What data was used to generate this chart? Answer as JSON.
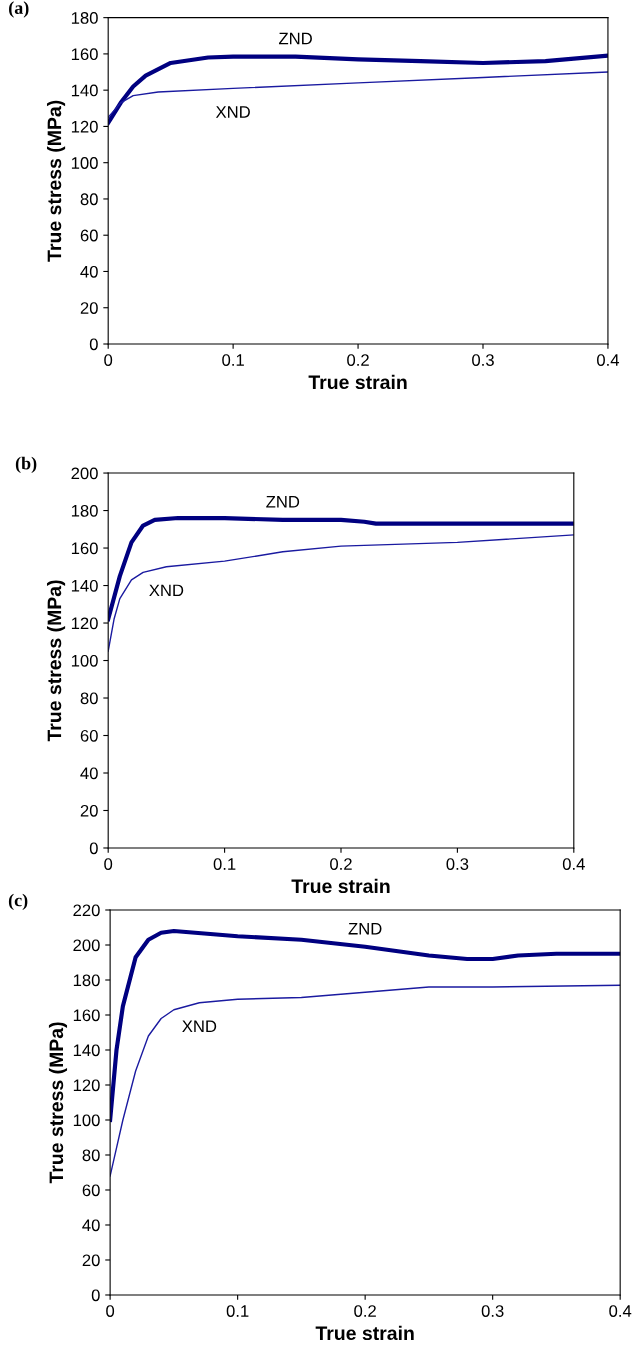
{
  "chart_data": [
    {
      "type": "line",
      "title": "(a)",
      "xlabel": "True strain",
      "ylabel": "True stress (MPa)",
      "xlim": [
        0,
        0.4
      ],
      "ylim": [
        0,
        180
      ],
      "xticks": [
        0,
        0.1,
        0.2,
        0.3,
        0.4
      ],
      "yticks": [
        0,
        20,
        40,
        60,
        80,
        100,
        120,
        140,
        160,
        180
      ],
      "grid": false,
      "legend": false,
      "marker": "none",
      "line_style": "solid",
      "series": [
        {
          "name": "ZND",
          "color": "#000080",
          "x": [
            0,
            0.01,
            0.02,
            0.03,
            0.05,
            0.08,
            0.1,
            0.15,
            0.2,
            0.25,
            0.3,
            0.35,
            0.4
          ],
          "values": [
            122,
            133,
            142,
            148,
            155,
            158,
            158.5,
            158.5,
            157,
            156,
            155,
            156,
            159
          ]
        },
        {
          "name": "XND",
          "color": "#1a1aa0",
          "x": [
            0,
            0.01,
            0.02,
            0.04,
            0.1,
            0.2,
            0.3,
            0.4
          ],
          "values": [
            125,
            133,
            137,
            139,
            141,
            144,
            147,
            150
          ]
        }
      ]
    },
    {
      "type": "line",
      "title": "(b)",
      "xlabel": "True strain",
      "ylabel": "True stress (MPa)",
      "xlim": [
        0,
        0.4
      ],
      "ylim": [
        0,
        200
      ],
      "xticks": [
        0,
        0.1,
        0.2,
        0.3,
        0.4
      ],
      "yticks": [
        0,
        20,
        40,
        60,
        80,
        100,
        120,
        140,
        160,
        180,
        200
      ],
      "grid": false,
      "legend": false,
      "marker": "none",
      "line_style": "solid",
      "series": [
        {
          "name": "ZND",
          "color": "#000080",
          "x": [
            0,
            0.01,
            0.02,
            0.03,
            0.04,
            0.06,
            0.1,
            0.15,
            0.2,
            0.22,
            0.23,
            0.4
          ],
          "values": [
            122,
            145,
            163,
            172,
            175,
            176,
            176,
            175,
            175,
            174,
            173,
            173
          ]
        },
        {
          "name": "XND",
          "color": "#1a1aa0",
          "x": [
            0,
            0.005,
            0.01,
            0.02,
            0.03,
            0.05,
            0.1,
            0.15,
            0.2,
            0.3,
            0.4
          ],
          "values": [
            105,
            122,
            133,
            143,
            147,
            150,
            153,
            158,
            161,
            163,
            167
          ]
        }
      ]
    },
    {
      "type": "line",
      "title": "(c)",
      "xlabel": "True strain",
      "ylabel": "True stress (MPa)",
      "xlim": [
        0,
        0.4
      ],
      "ylim": [
        0,
        220
      ],
      "xticks": [
        0,
        0.1,
        0.2,
        0.3,
        0.4
      ],
      "yticks": [
        0,
        20,
        40,
        60,
        80,
        100,
        120,
        140,
        160,
        180,
        200,
        220
      ],
      "grid": false,
      "legend": false,
      "marker": "none",
      "line_style": "solid",
      "series": [
        {
          "name": "ZND",
          "color": "#000080",
          "x": [
            0,
            0.005,
            0.01,
            0.02,
            0.03,
            0.04,
            0.05,
            0.1,
            0.15,
            0.2,
            0.25,
            0.28,
            0.3,
            0.32,
            0.35,
            0.4
          ],
          "values": [
            100,
            140,
            165,
            193,
            203,
            207,
            208,
            205,
            203,
            199,
            194,
            192,
            192,
            194,
            195,
            195
          ]
        },
        {
          "name": "XND",
          "color": "#1a1aa0",
          "x": [
            0,
            0.01,
            0.02,
            0.03,
            0.04,
            0.05,
            0.07,
            0.1,
            0.15,
            0.2,
            0.25,
            0.3,
            0.4
          ],
          "values": [
            68,
            100,
            128,
            148,
            158,
            163,
            167,
            169,
            170,
            173,
            176,
            176,
            177
          ]
        }
      ]
    }
  ]
}
